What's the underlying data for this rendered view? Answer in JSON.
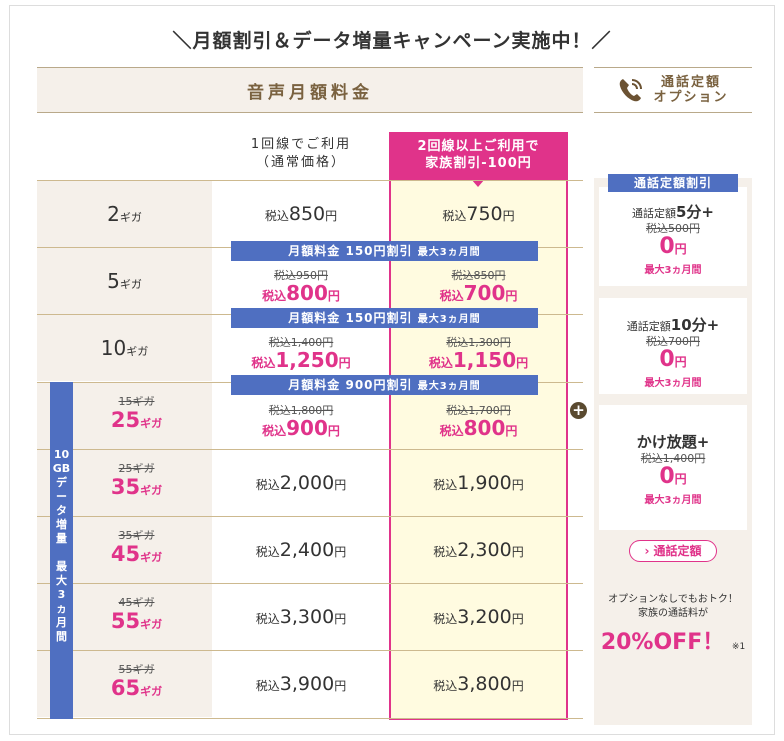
{
  "title": "＼月額割引＆データ増量キャンペーン実施中！／",
  "main_header": "音声月額料金",
  "option_header": {
    "line1": "通話定額",
    "line2": "オプション",
    "icon": "phone-icon"
  },
  "columns": {
    "single": {
      "line1": "1回線でご利用",
      "line2": "（通常価格）"
    },
    "family": {
      "line1": "2回線以上ご利用で",
      "line2": "家族割引-100円"
    }
  },
  "units": {
    "tax": "税込",
    "yen": "円",
    "giga": "ギガ"
  },
  "rows": [
    {
      "plan": "2",
      "single": "850",
      "family": "750"
    },
    {
      "plan": "5",
      "single_old": "税込950円",
      "single": "800",
      "family_old": "税込850円",
      "family": "700"
    },
    {
      "plan": "10",
      "single_old": "税込1,400円",
      "single": "1,250",
      "family_old": "税込1,300円",
      "family": "1,150"
    },
    {
      "plan_old": "15ギガ",
      "plan": "25",
      "single_old": "税込1,800円",
      "single": "900",
      "family_old": "税込1,700円",
      "family": "800"
    },
    {
      "plan_old": "25ギガ",
      "plan": "35",
      "single": "2,000",
      "family": "1,900"
    },
    {
      "plan_old": "35ギガ",
      "plan": "45",
      "single": "2,400",
      "family": "2,300"
    },
    {
      "plan_old": "45ギガ",
      "plan": "55",
      "single": "3,300",
      "family": "3,200"
    },
    {
      "plan_old": "55ギガ",
      "plan": "65",
      "single": "3,900",
      "family": "3,800"
    }
  ],
  "banners": [
    {
      "main": "月額料金 150円割引",
      "term": "最大3ヵ月間"
    },
    {
      "main": "月額料金 150円割引",
      "term": "最大3ヵ月間"
    },
    {
      "main": "月額料金 900円割引",
      "term": "最大3ヵ月間"
    }
  ],
  "data_boost": [
    "10",
    "GB",
    "デ",
    "ー",
    "タ",
    "増",
    "量",
    "",
    "最",
    "大",
    "3",
    "ヵ",
    "月",
    "間"
  ],
  "option_label": "通話定額割引",
  "options": [
    {
      "prefix": "通話定額",
      "name": "5分+",
      "old": "税込500円",
      "price": "0",
      "term": "最大3ヵ月間"
    },
    {
      "prefix": "通話定額",
      "name": "10分+",
      "old": "税込700円",
      "price": "0",
      "term": "最大3ヵ月間"
    },
    {
      "prefix": "",
      "name": "かけ放題+",
      "old": "税込1,400円",
      "price": "0",
      "term": "最大3ヵ月間"
    }
  ],
  "option_button": "› 通話定額",
  "note": {
    "line1": "オプションなしでもおトク！",
    "line2": "家族の通話料が",
    "off": "20%OFF！",
    "footnote": "※1"
  },
  "colors": {
    "pink": "#e0338a",
    "blue": "#4f6fc1",
    "beige": "#f5f0ea",
    "yellow": "#fffbe0",
    "brown": "#7a6240"
  }
}
